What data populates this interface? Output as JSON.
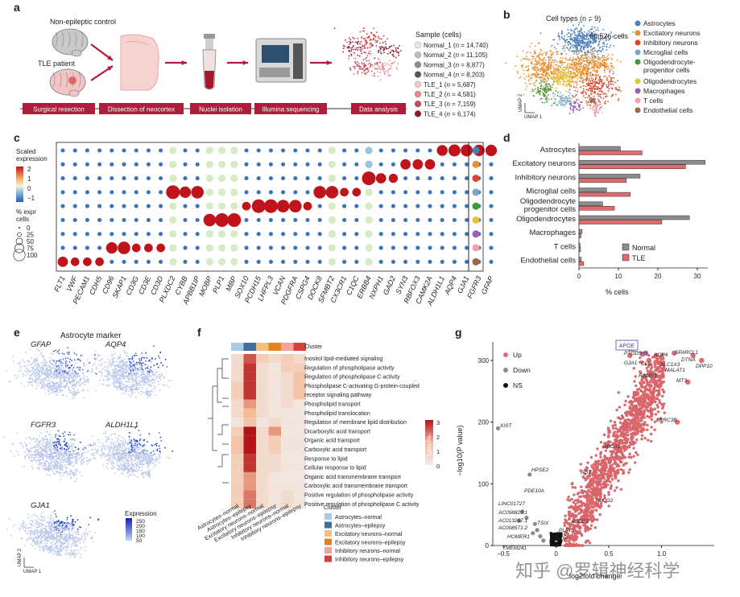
{
  "panels": {
    "a": "a",
    "b": "b",
    "c": "c",
    "d": "d",
    "e": "e",
    "f": "f",
    "g": "g"
  },
  "panel_a": {
    "control_label": "Non-epileptic control",
    "tle_label": "TLE patient",
    "steps": [
      "Surgical resection",
      "Dissection of neocortex",
      "Nuclei isolation",
      "Illumina sequencing",
      "Data analysis"
    ],
    "sample_title": "Sample (cells)",
    "samples": [
      {
        "name": "Normal_1",
        "n": "14,740",
        "color": "#e6e6e6"
      },
      {
        "name": "Normal_2",
        "n": "11,105",
        "color": "#bdbdbd"
      },
      {
        "name": "Normal_3",
        "n": "8,877",
        "color": "#8c8c8c"
      },
      {
        "name": "Normal_4",
        "n": "8,203",
        "color": "#555555"
      },
      {
        "name": "TLE_1",
        "n": "5,687",
        "color": "#f3c7cc"
      },
      {
        "name": "TLE_2",
        "n": "4,581",
        "color": "#e58b95"
      },
      {
        "name": "TLE_3",
        "n": "7,159",
        "color": "#c84a5a"
      },
      {
        "name": "TLE_4",
        "n": "6,174",
        "color": "#8e1b2a"
      }
    ]
  },
  "panel_b": {
    "title": "Cell types (n = 9)",
    "total": "66,526 cells",
    "umap1": "UMAP 1",
    "umap2": "UMAP 2",
    "cell_types": [
      {
        "name": "Astrocytes",
        "color": "#4a7fbf"
      },
      {
        "name": "Excitatory neurons",
        "color": "#e8902f"
      },
      {
        "name": "Inhibitory neurons",
        "color": "#d9472b"
      },
      {
        "name": "Microglial cells",
        "color": "#7aa7c7"
      },
      {
        "name": "Oligodendrocyte-\nprogenitor cells",
        "color": "#3f9a3a"
      },
      {
        "name": "Oligodendrocytes",
        "color": "#e4c33b"
      },
      {
        "name": "Macrophages",
        "color": "#9b5fb5"
      },
      {
        "name": "T cells",
        "color": "#f0a0b0"
      },
      {
        "name": "Endothelial cells",
        "color": "#9a6a44"
      }
    ]
  },
  "panel_c": {
    "scale_title": "Scaled expression",
    "scale_ticks": [
      "2",
      "1",
      "0",
      "−1"
    ],
    "pct_title": "% expr cells",
    "pct_ticks": [
      "0",
      "25",
      "50",
      "75",
      "100"
    ],
    "genes": [
      "FLT1",
      "VWF",
      "PECAM1",
      "CDH5",
      "CD96",
      "SKAP1",
      "CD3G",
      "CD3E",
      "CD3D",
      "PLXDC2",
      "CYBB",
      "APBB1IP",
      "MOBP",
      "PLP1",
      "MBP",
      "SOX10",
      "PCDH15",
      "LHFPL3",
      "VCAN",
      "PDGFRA",
      "CSPG4",
      "DOCK8",
      "SFMBT2",
      "CX3CR1",
      "C1QC",
      "ERBB4",
      "NXPH1",
      "GAD2",
      "SYN3",
      "RBFOX3",
      "CAMK2A",
      "ALDH1L1",
      "AQP4",
      "GJA1",
      "FGFR3",
      "GFAP"
    ],
    "row_colors": [
      "#4a7fbf",
      "#e8902f",
      "#d9472b",
      "#7aa7c7",
      "#3f9a3a",
      "#e4c33b",
      "#9b5fb5",
      "#f0a0b0",
      "#9a6a44"
    ]
  },
  "panel_d": {
    "xlabel": "% cells",
    "legend": [
      {
        "name": "Normal",
        "color": "#8c8c8c"
      },
      {
        "name": "TLE",
        "color": "#e06a6f"
      }
    ]
  },
  "panel_e": {
    "title": "Astrocyte marker",
    "genes": [
      "GFAP",
      "AQP4",
      "FGFR3",
      "ALDH1L1",
      "GJA1"
    ],
    "expr_title": "Expression",
    "expr_ticks": [
      "250",
      "200",
      "150",
      "100",
      "50"
    ],
    "umap1": "UMAP 1",
    "umap2": "UMAP 2"
  },
  "panel_f": {
    "cluster_label": "Cluster",
    "terms": [
      "Inositol lipid-mediated signaling",
      "Regulation of phospholipase activity",
      "Regulation of phospholipase C activity",
      "Phospholipase C-activating G-protein-coupled",
      "receptor signaling pathway",
      "Phospholipid transport",
      "Phospholipid translocation",
      "Regulation of membrane lipid distribution",
      "Dicarboxylic acid transport",
      "Organic acid transport",
      "Carboxylic acid transport",
      "Response to lipid",
      "Cellular response to lipid",
      "Organic acid transmembrane transport",
      "Carboxylic acid transmembrane transport",
      "Positive regulation of phospholipase activity",
      "Positive regulation of phospholipase C activity"
    ],
    "columns": [
      "Astrocytes–normal",
      "Astrocytes–epilepsy",
      "Excitatory neurons–normal",
      "Excitatory neurons–epilepsy",
      "Inhibitory neurons–normal",
      "Inhibitory neurons–epilepsy"
    ],
    "col_colors": [
      "#a9c9e6",
      "#3e6f9e",
      "#f4c07f",
      "#e5821f",
      "#f2a39e",
      "#d8403c"
    ],
    "scale_title": "−log10(P)",
    "scale_ticks": [
      "3",
      "2",
      "1",
      "0"
    ],
    "legend_title": "Cluster"
  },
  "panel_g": {
    "legend": [
      {
        "name": "Up",
        "color": "#e06a6f"
      },
      {
        "name": "Down",
        "color": "#8c8c8c"
      },
      {
        "name": "NS",
        "color": "#111111"
      }
    ],
    "ylabel": "−log10(P value)",
    "xlabel": "log2fold change",
    "yticks": [
      "0",
      "100",
      "200",
      "300"
    ],
    "xticks": [
      "−0.5",
      "0",
      "0.5",
      "1.0"
    ],
    "boxed_gene": "APOE",
    "genes": [
      "PTGDS",
      "AQP4",
      "SPARCL1",
      "DTNA",
      "DPP10",
      "GJA1",
      "CLU",
      "SLC1A3",
      "MALAT1",
      "RBMS3",
      "MT3",
      "LRRC3B",
      "ABCA1",
      "AGT",
      "PLCG2",
      "ABCD2",
      "PLIN5",
      "PLIN2",
      "XIST",
      "HPSE2",
      "PDE10A",
      "LINC01727",
      "AC098829.1",
      "AC013287.1",
      "AC008571.2",
      "TSIX",
      "HOMER1",
      "TMEM241"
    ]
  },
  "watermark": "知乎 @罗辑神经科学"
}
